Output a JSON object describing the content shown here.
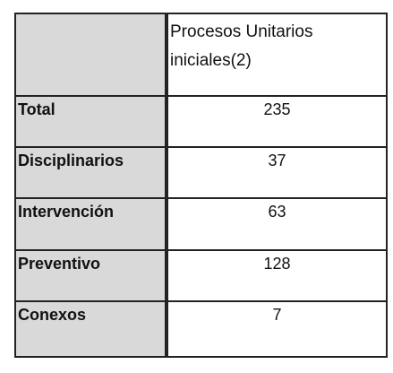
{
  "table": {
    "header": "Procesos Unitarios iniciales(2)",
    "rows": [
      {
        "label": "Total",
        "value": "235"
      },
      {
        "label": "Disciplinarios",
        "value": "37"
      },
      {
        "label": "Intervención",
        "value": "63"
      },
      {
        "label": "Preventivo",
        "value": "128"
      },
      {
        "label": "Conexos",
        "value": "7"
      }
    ]
  }
}
